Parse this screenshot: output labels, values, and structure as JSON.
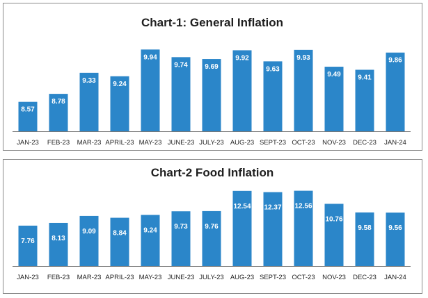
{
  "chart_data": [
    {
      "type": "bar",
      "title": "Chart-1: General Inflation",
      "xlabel": "",
      "ylabel": "",
      "categories": [
        "JAN-23",
        "FEB-23",
        "MAR-23",
        "APRIL-23",
        "MAY-23",
        "JUNE-23",
        "JULY-23",
        "AUG-23",
        "SEPT-23",
        "OCT-23",
        "NOV-23",
        "DEC-23",
        "JAN-24"
      ],
      "values": [
        8.57,
        8.78,
        9.33,
        9.24,
        9.94,
        9.74,
        9.69,
        9.92,
        9.63,
        9.93,
        9.49,
        9.41,
        9.86
      ],
      "labels": [
        "8.57",
        "8.78",
        "9.33",
        "9.24",
        "9.94",
        "9.74",
        "9.69",
        "9.92",
        "9.63",
        "9.93",
        "9.49",
        "9.41",
        "9.86"
      ],
      "ylim": [
        7.8,
        10.2
      ],
      "color": "#2b86c9"
    },
    {
      "type": "bar",
      "title": "Chart-2 Food Inflation",
      "xlabel": "",
      "ylabel": "",
      "categories": [
        "JAN-23",
        "FEB-23",
        "MAR-23",
        "APRIL-23",
        "MAY-23",
        "JUNE-23",
        "JULY-23",
        "AUG-23",
        "SEPT-23",
        "OCT-23",
        "NOV-23",
        "DEC-23",
        "JAN-24"
      ],
      "values": [
        7.76,
        8.13,
        9.09,
        8.84,
        9.24,
        9.73,
        9.76,
        12.54,
        12.37,
        12.56,
        10.76,
        9.58,
        9.56
      ],
      "labels": [
        "7.76",
        "8.13",
        "9.09",
        "8.84",
        "9.24",
        "9.73",
        "9.76",
        "12.54",
        "12.37",
        "12.56",
        "10.76",
        "9.58",
        "9.56"
      ],
      "ylim": [
        2.2,
        13.0
      ],
      "color": "#2b86c9"
    }
  ]
}
